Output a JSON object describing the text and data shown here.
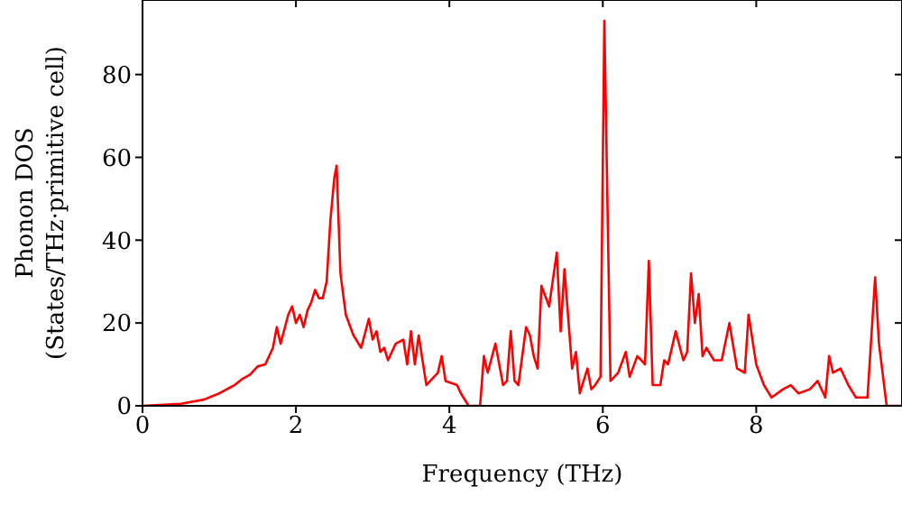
{
  "chart_data": {
    "type": "line",
    "xlabel": "Frequency (THz)",
    "ylabel": "Phonon DOS\n(States/THz·primitive cell)",
    "x": [
      0,
      0.5,
      0.8,
      1.0,
      1.2,
      1.3,
      1.4,
      1.5,
      1.6,
      1.7,
      1.75,
      1.8,
      1.9,
      1.95,
      2.0,
      2.05,
      2.1,
      2.15,
      2.2,
      2.25,
      2.3,
      2.35,
      2.4,
      2.45,
      2.5,
      2.53,
      2.58,
      2.65,
      2.75,
      2.85,
      2.95,
      3.0,
      3.05,
      3.1,
      3.15,
      3.2,
      3.3,
      3.4,
      3.45,
      3.5,
      3.55,
      3.6,
      3.7,
      3.8,
      3.85,
      3.9,
      3.95,
      4.1,
      4.15,
      4.25,
      4.4,
      4.45,
      4.5,
      4.6,
      4.7,
      4.75,
      4.8,
      4.85,
      4.9,
      5.0,
      5.05,
      5.1,
      5.15,
      5.2,
      5.3,
      5.4,
      5.45,
      5.5,
      5.6,
      5.65,
      5.7,
      5.8,
      5.85,
      5.9,
      5.97,
      6.02,
      6.1,
      6.2,
      6.3,
      6.35,
      6.45,
      6.5,
      6.55,
      6.6,
      6.65,
      6.75,
      6.8,
      6.85,
      6.95,
      7.05,
      7.1,
      7.15,
      7.2,
      7.25,
      7.3,
      7.35,
      7.45,
      7.55,
      7.65,
      7.75,
      7.85,
      7.9,
      8.0,
      8.1,
      8.2,
      8.35,
      8.45,
      8.55,
      8.7,
      8.8,
      8.9,
      8.95,
      9.0,
      9.1,
      9.2,
      9.3,
      9.45,
      9.55,
      9.6,
      9.7,
      9.9
    ],
    "series": [
      {
        "color": "#ff0000",
        "values": [
          0,
          0.5,
          1.5,
          3,
          5,
          6.5,
          7.5,
          9.5,
          10,
          14,
          19,
          15,
          22,
          24,
          20,
          22,
          19,
          23,
          25,
          28,
          26,
          26,
          30,
          45,
          55,
          58,
          32,
          22,
          17,
          14,
          21,
          16,
          18,
          13,
          14,
          11,
          15,
          16,
          10,
          18,
          10,
          17,
          5,
          7,
          8,
          12,
          6,
          5,
          3,
          0,
          0,
          12,
          8,
          15,
          5,
          6,
          18,
          6,
          5,
          19,
          17,
          12,
          9,
          29,
          24,
          37,
          18,
          33,
          9,
          13,
          3,
          9,
          4,
          5,
          7,
          93,
          6,
          8,
          13,
          7,
          12,
          11,
          10,
          35,
          5,
          5,
          11,
          10,
          18,
          11,
          13,
          32,
          20,
          27,
          12,
          14,
          11,
          11,
          20,
          9,
          8,
          22,
          10,
          5,
          2,
          4,
          5,
          3,
          4,
          6,
          2,
          12,
          8,
          9,
          5,
          2,
          2,
          31,
          15,
          0,
          0
        ]
      }
    ],
    "xlim": [
      0,
      9.9
    ],
    "ylim": [
      0,
      98
    ],
    "xticks": [
      0,
      2,
      4,
      6,
      8
    ],
    "yticks": [
      0,
      20,
      40,
      60,
      80
    ],
    "grid": false,
    "marker": "none",
    "line_style": "solid"
  }
}
